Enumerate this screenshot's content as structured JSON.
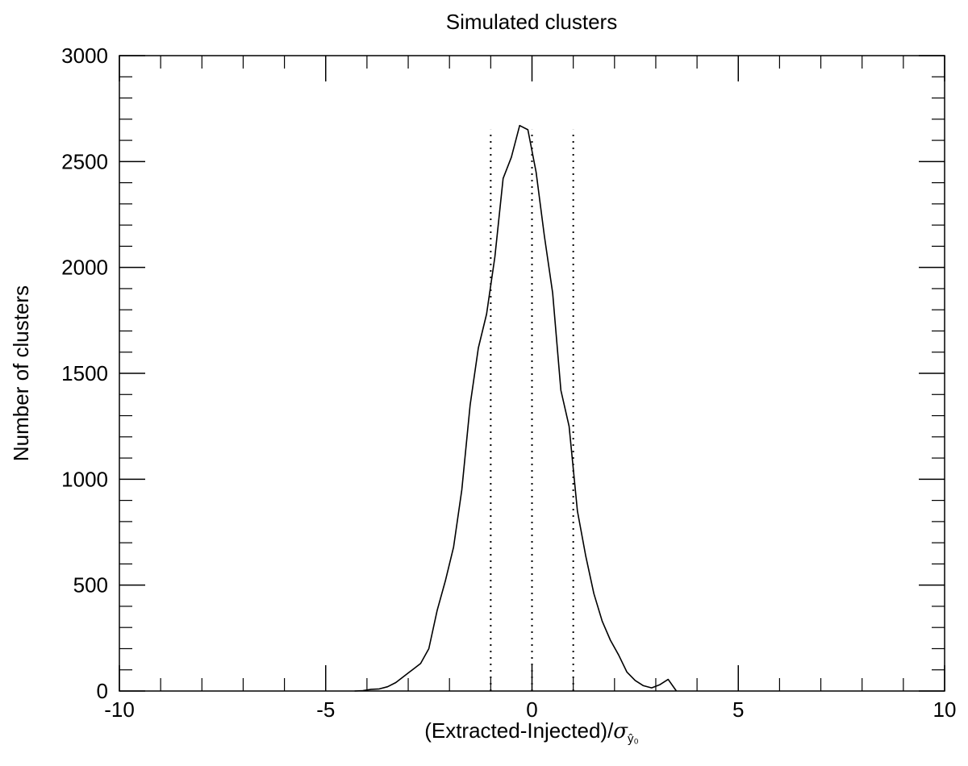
{
  "chart_data": {
    "type": "line",
    "title": "Simulated clusters",
    "xlabel": "(Extracted-Injected)/",
    "xlabel_symbol": "σ",
    "xlabel_subscript": "ŷ₀",
    "ylabel": "Number of clusters",
    "xlim": [
      -10,
      10
    ],
    "ylim": [
      0,
      3000
    ],
    "x_major_ticks": [
      -10,
      -5,
      0,
      5,
      10
    ],
    "x_tick_labels": [
      "-10",
      "-5",
      "0",
      "5",
      "10"
    ],
    "x_minor_step": 1,
    "y_major_ticks": [
      0,
      500,
      1000,
      1500,
      2000,
      2500,
      3000
    ],
    "y_tick_labels": [
      "0",
      "500",
      "1000",
      "1500",
      "2000",
      "2500",
      "3000"
    ],
    "y_minor_step": 100,
    "grid": false,
    "series": [
      {
        "x": [
          -4.3,
          -4.1,
          -3.9,
          -3.7,
          -3.5,
          -3.3,
          -3.1,
          -2.9,
          -2.7,
          -2.5,
          -2.3,
          -2.1,
          -1.9,
          -1.7,
          -1.5,
          -1.3,
          -1.1,
          -0.9,
          -0.7,
          -0.5,
          -0.3,
          -0.1,
          0.1,
          0.3,
          0.5,
          0.7,
          0.9,
          1.1,
          1.3,
          1.5,
          1.7,
          1.9,
          2.1,
          2.3,
          2.5,
          2.7,
          2.9,
          3.1,
          3.3,
          3.5
        ],
        "values": [
          0,
          2,
          8,
          10,
          20,
          40,
          70,
          100,
          130,
          200,
          380,
          520,
          680,
          950,
          1350,
          1620,
          1780,
          2050,
          2420,
          2520,
          2670,
          2650,
          2450,
          2150,
          1880,
          1420,
          1250,
          850,
          640,
          460,
          330,
          240,
          170,
          90,
          50,
          25,
          15,
          30,
          55,
          0
        ]
      }
    ],
    "reference_lines_x": [
      -1,
      0,
      1
    ],
    "reference_line_style": "dotted"
  }
}
